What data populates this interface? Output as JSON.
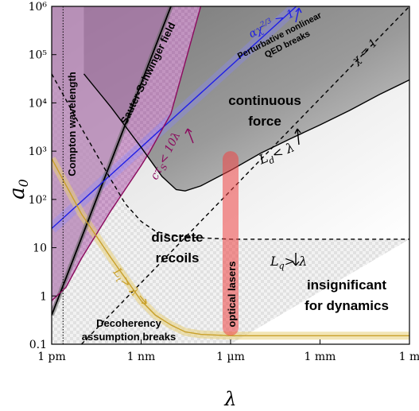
{
  "chart_data": {
    "type": "area",
    "title": "",
    "xlabel": "λ",
    "ylabel": "a0",
    "xscale": "log",
    "yscale": "log",
    "xlim": [
      1e-12,
      1
    ],
    "ylim": [
      0.1,
      1000000
    ],
    "x_ticks": [
      {
        "value": 1e-12,
        "label": "1 pm"
      },
      {
        "value": 1e-09,
        "label": "1 nm"
      },
      {
        "value": 1e-06,
        "label": "1 µm"
      },
      {
        "value": 0.001,
        "label": "1 mm"
      },
      {
        "value": 1,
        "label": "1 m"
      }
    ],
    "y_ticks": [
      {
        "value": 0.1,
        "label": "0.1"
      },
      {
        "value": 1,
        "label": "1"
      },
      {
        "value": 10,
        "label": "10"
      },
      {
        "value": 100,
        "label": "10²"
      },
      {
        "value": 1000,
        "label": "10³"
      },
      {
        "value": 10000,
        "label": "10⁴"
      },
      {
        "value": 100000,
        "label": "10⁵"
      },
      {
        "value": 1000000,
        "label": "10⁶"
      }
    ],
    "grid": false,
    "legend": "none",
    "regions": [
      {
        "label": "continuous force",
        "x": 1e-07,
        "y": 8000
      },
      {
        "label": "discrete recoils",
        "x": 1e-08,
        "y": 15
      },
      {
        "label": "insignificant for dynamics",
        "x": 0.0005,
        "y": 1.8
      }
    ],
    "series": [
      {
        "name": "Sauter-Schwinger field",
        "color": "#000000",
        "x": [
          1e-12,
          1e-08
        ],
        "y": [
          0.4,
          1000000
        ]
      },
      {
        "name": "Perturbative nonlinear QED breaks",
        "math": "αχ^{2/3} > 1",
        "color": "#1f1fe6",
        "x": [
          1e-12,
          0.00016
        ],
        "y": [
          25,
          1000000
        ]
      },
      {
        "name": "cτ_S < 10λ",
        "color": "#8b0a5e",
        "x": [
          1e-12,
          3e-12,
          1e-11,
          1e-10,
          1e-09,
          2e-09,
          1e-08,
          1e-07
        ],
        "y": [
          0.8,
          1.5,
          6,
          60,
          500,
          1000,
          6000,
          1000000
        ]
      },
      {
        "name": "χ = 1",
        "color": "#000000",
        "style": "dashed",
        "x": [
          1e-11,
          1
        ],
        "y": [
          0.1,
          1000000
        ]
      },
      {
        "name": "L_d < λ",
        "color": "#000000",
        "x": [
          1.2e-11,
          1e-10,
          1e-09,
          5e-09,
          1.5e-08,
          3e-08,
          1e-07,
          1e-06,
          1e-05,
          0.0001,
          0.001,
          0.01,
          0.1,
          1
        ],
        "y": [
          40000,
          8000,
          1200,
          300,
          160,
          150,
          190,
          400,
          900,
          1800,
          3500,
          7000,
          15000,
          30000
        ]
      },
      {
        "name": "L_q > λ",
        "color": "#000000",
        "style": "dashed",
        "x": [
          1e-12,
          1e-11,
          1e-10,
          3e-10,
          1e-09,
          3e-09,
          1e-08,
          1e-07,
          1e-06,
          1e-05,
          0.001,
          1
        ],
        "y": [
          40000,
          3000,
          250,
          80,
          35,
          22,
          18,
          16,
          15,
          15,
          15,
          15
        ]
      },
      {
        "name": "Decoherency assumption breaks",
        "math": "L_t > λ",
        "color": "#c9a02a",
        "x": [
          1e-12,
          1e-11,
          1e-10,
          1e-09,
          3e-09,
          1e-08,
          3e-08,
          1e-07,
          1e-06,
          1e-05,
          0.001,
          1
        ],
        "y": [
          700,
          50,
          6,
          0.8,
          0.4,
          0.25,
          0.18,
          0.16,
          0.15,
          0.15,
          0.15,
          0.15
        ]
      },
      {
        "name": "Compton wavelength",
        "color": "#000000",
        "style": "dotted",
        "x": [
          2.4e-12,
          2.4e-12
        ],
        "y": [
          0.1,
          1000000
        ]
      },
      {
        "name": "optical lasers",
        "color": "#e33b3b",
        "x": [
          1e-06,
          1e-06
        ],
        "y": [
          0.15,
          1000
        ]
      }
    ]
  },
  "labels": {
    "sauter": "Sauter-Schwinger field",
    "qed_math": "αχ",
    "qed_exp": "2/3",
    "qed_gt": " > 1",
    "qed_line1": "Perturbative nonlinear",
    "qed_line2": "QED breaks",
    "ctau": "cτ",
    "ctau_sub": "S",
    "ctau_rest": "< 10λ",
    "chi": "χ = 1",
    "ld": "L",
    "ld_sub": "d",
    "ld_rest": "< λ",
    "lq": "L",
    "lq_sub": "q",
    "lq_rest": "> λ",
    "lt": "L",
    "lt_sub": "t",
    "lt_rest": "> λ",
    "compton": "Compton wavelength",
    "optical": "optical lasers",
    "continuous_1": "continuous",
    "continuous_2": "force",
    "discrete_1": "discrete",
    "discrete_2": "recoils",
    "insig_1": "insignificant",
    "insig_2": "for dynamics",
    "decoh_1": "Decoherency",
    "decoh_2": "assumption breaks"
  }
}
